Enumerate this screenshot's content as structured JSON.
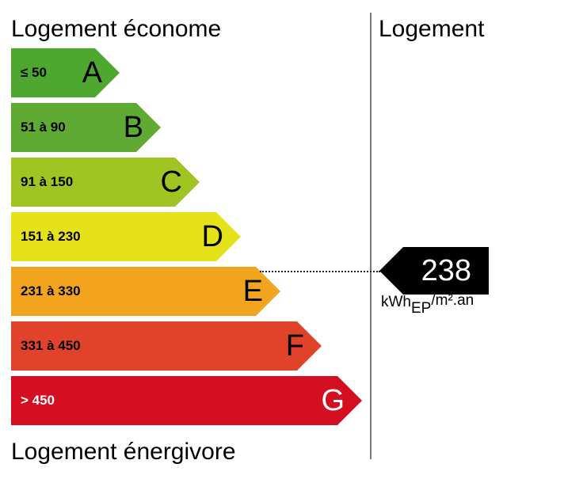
{
  "header": {
    "left_title": "Logement économe",
    "right_title": "Logement"
  },
  "footer": {
    "left_title": "Logement énergivore"
  },
  "bands": [
    {
      "range": "≤ 50",
      "letter": "A",
      "color": "#4ea72e"
    },
    {
      "range": "51 à 90",
      "letter": "B",
      "color": "#5faa32"
    },
    {
      "range": "91 à 150",
      "letter": "C",
      "color": "#a0c421"
    },
    {
      "range": "151 à 230",
      "letter": "D",
      "color": "#e6e21a"
    },
    {
      "range": "231 à 330",
      "letter": "E",
      "color": "#f2a41e"
    },
    {
      "range": "331 à 450",
      "letter": "F",
      "color": "#e0432a"
    },
    {
      "range": "> 450",
      "letter": "G",
      "color": "#d50f22"
    }
  ],
  "indicator": {
    "value": "238",
    "unit_main": "kWh",
    "unit_sub": "EP",
    "unit_after": "/m².an",
    "band": "E"
  }
}
